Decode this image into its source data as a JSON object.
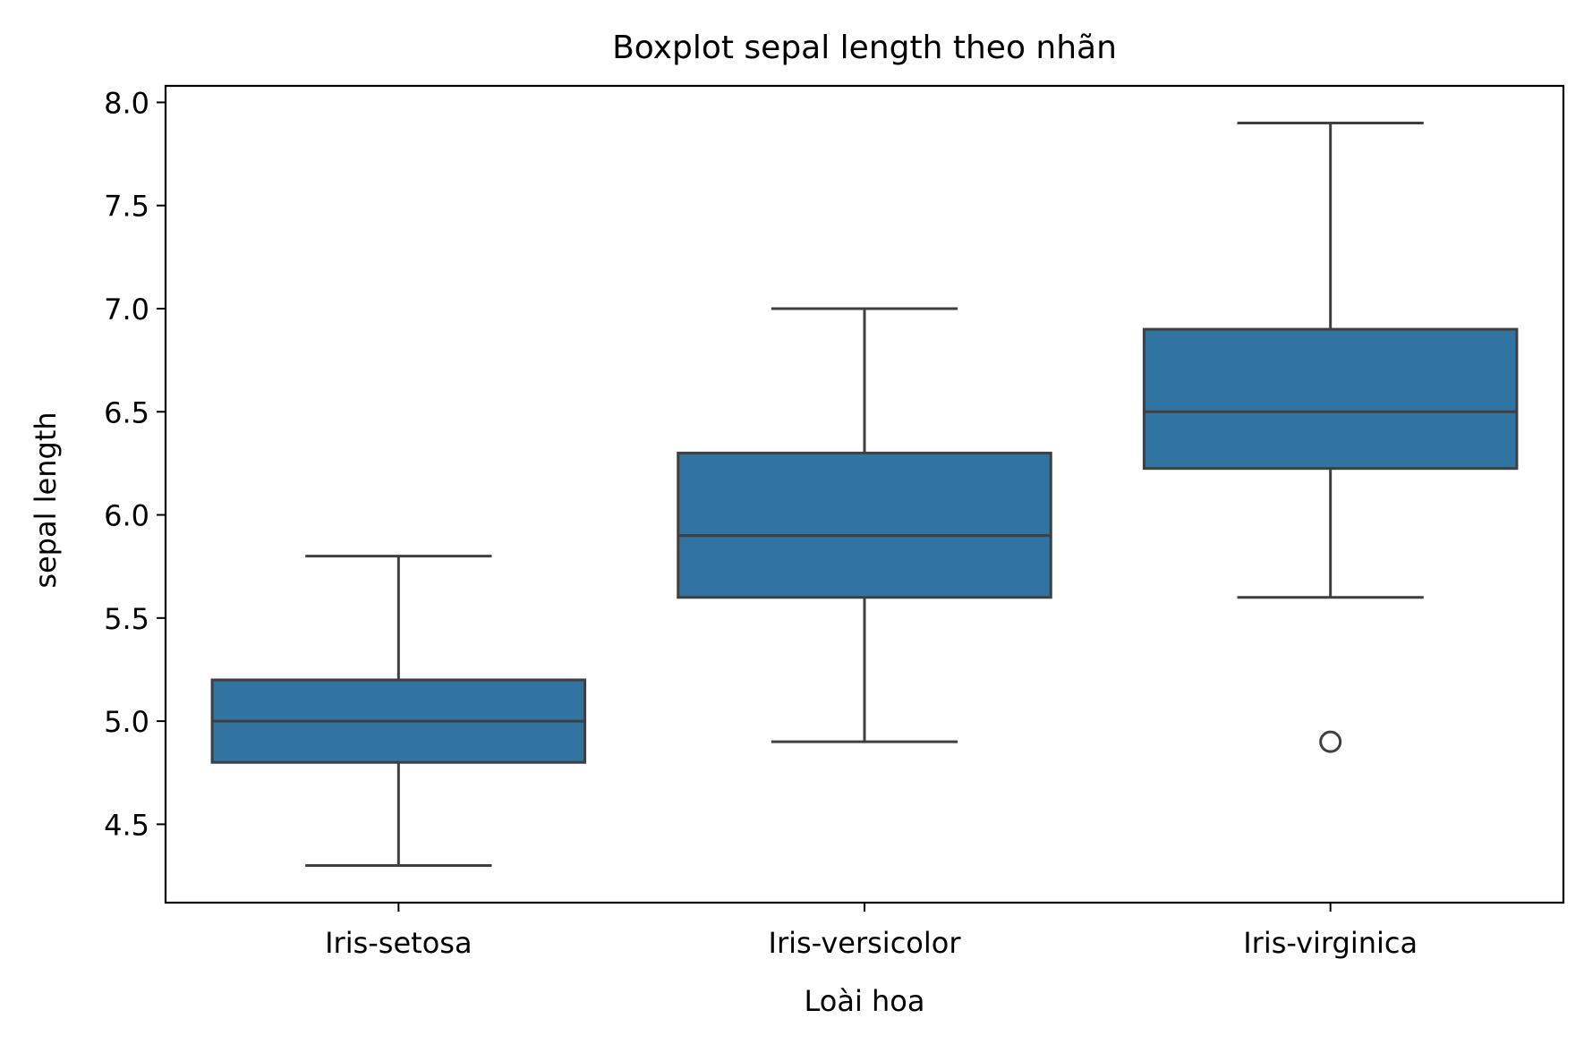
{
  "chart_data": {
    "type": "box",
    "title": "Boxplot sepal length theo nhãn",
    "xlabel": "Loài hoa",
    "ylabel": "sepal length",
    "categories": [
      "Iris-setosa",
      "Iris-versicolor",
      "Iris-virginica"
    ],
    "boxes": [
      {
        "category": "Iris-setosa",
        "whisker_low": 4.3,
        "q1": 4.8,
        "median": 5.0,
        "q3": 5.2,
        "whisker_high": 5.8,
        "outliers": []
      },
      {
        "category": "Iris-versicolor",
        "whisker_low": 4.9,
        "q1": 5.6,
        "median": 5.9,
        "q3": 6.3,
        "whisker_high": 7.0,
        "outliers": []
      },
      {
        "category": "Iris-virginica",
        "whisker_low": 5.6,
        "q1": 6.225,
        "median": 6.5,
        "q3": 6.9,
        "whisker_high": 7.9,
        "outliers": [
          4.9
        ]
      }
    ],
    "yticks": [
      "4.5",
      "5.0",
      "5.5",
      "6.0",
      "6.5",
      "7.0",
      "7.5",
      "8.0"
    ],
    "ylim": [
      4.12,
      8.08
    ],
    "grid": false,
    "legend": "none",
    "colors": {
      "box_fill": "#3274a1",
      "line": "#3f3f3f",
      "axis": "#000000"
    }
  }
}
